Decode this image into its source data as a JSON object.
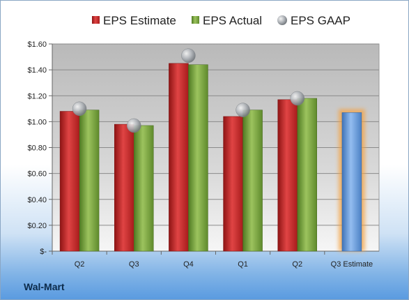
{
  "company": "Wal-Mart",
  "colors": {
    "estimate": "#c62a2a",
    "actual": "#79a341",
    "gaap": "#a9adb2",
    "future_estimate": "#6d9dd6",
    "glow": "#f4a342"
  },
  "chart_data": {
    "type": "bar",
    "title": "",
    "xlabel": "",
    "ylabel": "",
    "ylim": [
      0,
      1.6
    ],
    "yticks": [
      0,
      0.2,
      0.4,
      0.6,
      0.8,
      1.0,
      1.2,
      1.4,
      1.6
    ],
    "ytick_labels": [
      "$-",
      "$0.20",
      "$0.40",
      "$0.60",
      "$0.80",
      "$1.00",
      "$1.20",
      "$1.40",
      "$1.60"
    ],
    "grid": true,
    "legend_position": "top",
    "categories": [
      "Q2",
      "Q3",
      "Q4",
      "Q1",
      "Q2",
      "Q3 Estimate"
    ],
    "series": [
      {
        "name": "EPS Estimate",
        "type": "bar",
        "values": [
          1.08,
          0.98,
          1.45,
          1.04,
          1.17,
          null
        ]
      },
      {
        "name": "EPS Actual",
        "type": "bar",
        "values": [
          1.09,
          0.97,
          1.44,
          1.09,
          1.18,
          null
        ]
      },
      {
        "name": "EPS GAAP",
        "type": "marker",
        "values": [
          1.1,
          0.97,
          1.51,
          1.09,
          1.18,
          null
        ]
      }
    ],
    "future_estimate": {
      "category": "Q3 Estimate",
      "value": 1.07
    }
  }
}
